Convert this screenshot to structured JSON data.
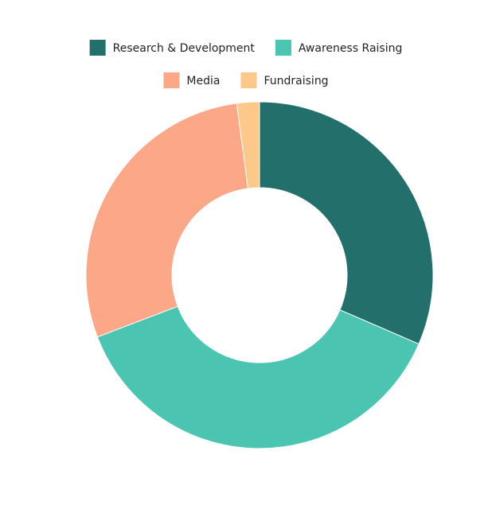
{
  "chart_data": {
    "type": "donut",
    "categories": [
      "Research & Development",
      "Awareness Raising",
      "Media",
      "Fundraising"
    ],
    "values": [
      31.5,
      37.7,
      28.7,
      2.1
    ],
    "colors": [
      "#236f6c",
      "#4bc5b1",
      "#fda789",
      "#fdc98a"
    ],
    "legend": "top"
  }
}
